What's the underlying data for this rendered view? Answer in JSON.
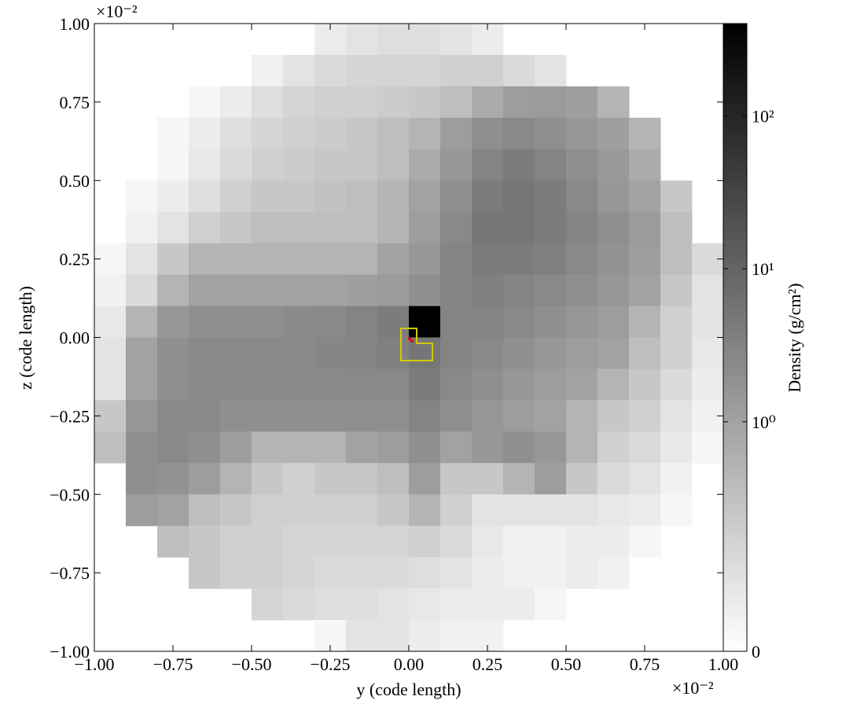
{
  "chart_data": {
    "type": "heatmap",
    "xlabel": "y  (code length)",
    "ylabel": "z  (code length)",
    "x_offset": "×10⁻²",
    "y_offset": "×10⁻²",
    "colorbar_label": "Density  (g/cm²)",
    "xlim": [
      -1,
      1
    ],
    "ylim": [
      -1,
      1
    ],
    "xticks": [
      {
        "value": -1,
        "label": "−1.00"
      },
      {
        "value": -0.75,
        "label": "−0.75"
      },
      {
        "value": -0.5,
        "label": "−0.50"
      },
      {
        "value": -0.25,
        "label": "−0.25"
      },
      {
        "value": 0,
        "label": "0.00"
      },
      {
        "value": 0.25,
        "label": "0.25"
      },
      {
        "value": 0.5,
        "label": "0.50"
      },
      {
        "value": 0.75,
        "label": "0.75"
      },
      {
        "value": 1,
        "label": "1.00"
      }
    ],
    "yticks": [
      {
        "value": -1,
        "label": "−1.00"
      },
      {
        "value": -0.75,
        "label": "−0.75"
      },
      {
        "value": -0.5,
        "label": "−0.50"
      },
      {
        "value": -0.25,
        "label": "−0.25"
      },
      {
        "value": 0,
        "label": "0.00"
      },
      {
        "value": 0.25,
        "label": "0.25"
      },
      {
        "value": 0.5,
        "label": "0.50"
      },
      {
        "value": 0.75,
        "label": "0.75"
      },
      {
        "value": 1,
        "label": "1.00"
      }
    ],
    "colorbar": {
      "scale": "symlog",
      "linthresh": 1,
      "lim": [
        0,
        400
      ],
      "colormap": "gray_r",
      "ticks": [
        {
          "value": 0,
          "label": "0"
        },
        {
          "value": 1,
          "label": "10⁰"
        },
        {
          "value": 10,
          "label": "10¹"
        },
        {
          "value": 100,
          "label": "10²"
        }
      ]
    },
    "x": [
      -0.95,
      -0.85,
      -0.75,
      -0.65,
      -0.55,
      -0.45,
      -0.35,
      -0.25,
      -0.15,
      -0.05,
      0.05,
      0.15,
      0.25,
      0.35,
      0.45,
      0.55,
      0.65,
      0.75,
      0.85,
      0.95
    ],
    "y": [
      0.95,
      0.85,
      0.75,
      0.65,
      0.55,
      0.45,
      0.35,
      0.25,
      0.15,
      0.05,
      -0.05,
      -0.15,
      -0.25,
      -0.35,
      -0.45,
      -0.55,
      -0.65,
      -0.75,
      -0.85,
      -0.95
    ],
    "values": [
      [
        null,
        null,
        null,
        null,
        null,
        null,
        null,
        0.2,
        0.3,
        0.35,
        0.35,
        0.3,
        0.2,
        null,
        null,
        null,
        null,
        null,
        null,
        null
      ],
      [
        null,
        null,
        null,
        null,
        null,
        0.15,
        0.3,
        0.4,
        0.45,
        0.45,
        0.45,
        0.5,
        0.5,
        0.4,
        0.3,
        null,
        null,
        null,
        null,
        null
      ],
      [
        null,
        null,
        null,
        0.1,
        0.2,
        0.35,
        0.45,
        0.5,
        0.5,
        0.55,
        0.6,
        0.7,
        0.9,
        1.2,
        1.3,
        1.1,
        0.8,
        null,
        null,
        null
      ],
      [
        null,
        null,
        0.1,
        0.2,
        0.35,
        0.45,
        0.5,
        0.55,
        0.6,
        0.7,
        0.8,
        1.2,
        2,
        2.5,
        2,
        1.5,
        1.1,
        0.8,
        null,
        null
      ],
      [
        null,
        null,
        0.1,
        0.25,
        0.4,
        0.5,
        0.55,
        0.6,
        0.6,
        0.7,
        0.9,
        1.5,
        3,
        4,
        3,
        2,
        1.4,
        0.9,
        null,
        null
      ],
      [
        null,
        0.1,
        0.2,
        0.35,
        0.5,
        0.6,
        0.6,
        0.65,
        0.7,
        0.8,
        1,
        2,
        4,
        5,
        4,
        2.5,
        1.5,
        1,
        0.6,
        null
      ],
      [
        null,
        0.15,
        0.3,
        0.5,
        0.6,
        0.7,
        0.7,
        0.7,
        0.7,
        0.8,
        1.2,
        2.5,
        5,
        5,
        4,
        3,
        2,
        1.3,
        0.7,
        null
      ],
      [
        0.1,
        0.3,
        0.6,
        0.8,
        0.8,
        0.8,
        0.8,
        0.8,
        0.8,
        1,
        1.5,
        3,
        4,
        4,
        3.5,
        2.5,
        1.8,
        1.2,
        0.7,
        0.4
      ],
      [
        0.15,
        0.4,
        0.8,
        1,
        1,
        1,
        1,
        1,
        1.1,
        1.3,
        2,
        3,
        3.5,
        3,
        2.5,
        2,
        1.5,
        1,
        0.6,
        0.3
      ],
      [
        0.25,
        0.8,
        1.5,
        2,
        2,
        2,
        2.3,
        2.5,
        3,
        4,
        400,
        3,
        3,
        2.5,
        2,
        1.5,
        1.2,
        0.8,
        0.5,
        0.3
      ],
      [
        0.3,
        1,
        2,
        2.5,
        2.5,
        2.5,
        2.5,
        2.8,
        3,
        3.5,
        5,
        3,
        2.5,
        2,
        1.5,
        1.2,
        1,
        0.7,
        0.5,
        0.25
      ],
      [
        0.3,
        1,
        2,
        2.5,
        2.5,
        2.5,
        2.5,
        2.5,
        2.5,
        2.5,
        4,
        2.5,
        2,
        1.5,
        1.2,
        1,
        0.8,
        0.6,
        0.4,
        0.2
      ],
      [
        0.6,
        1.5,
        2.5,
        2.5,
        2,
        2,
        2,
        2,
        2,
        2,
        3,
        2,
        1.5,
        1.2,
        1,
        0.8,
        0.6,
        0.5,
        0.3,
        0.15
      ],
      [
        0.7,
        2,
        2.5,
        2,
        1.2,
        0.8,
        0.8,
        0.8,
        1,
        1.2,
        2,
        1,
        1.5,
        2,
        1.5,
        0.8,
        0.5,
        0.4,
        0.25,
        0.1
      ],
      [
        null,
        2,
        1.8,
        1.2,
        0.8,
        0.6,
        0.5,
        0.6,
        0.6,
        0.7,
        1.2,
        0.6,
        0.6,
        0.8,
        1.2,
        0.6,
        0.4,
        0.3,
        0.15,
        null
      ],
      [
        null,
        1.2,
        1,
        0.7,
        0.6,
        0.5,
        0.5,
        0.5,
        0.5,
        0.6,
        0.8,
        0.5,
        0.3,
        0.3,
        0.3,
        0.3,
        0.25,
        0.2,
        0.1,
        null
      ],
      [
        null,
        null,
        0.7,
        0.6,
        0.5,
        0.5,
        0.45,
        0.45,
        0.45,
        0.45,
        0.5,
        0.4,
        0.25,
        0.15,
        0.15,
        0.2,
        0.2,
        0.1,
        null,
        null
      ],
      [
        null,
        null,
        null,
        0.6,
        0.5,
        0.5,
        0.45,
        0.4,
        0.4,
        0.4,
        0.35,
        0.3,
        0.2,
        0.15,
        0.15,
        0.2,
        0.15,
        null,
        null,
        null
      ],
      [
        null,
        null,
        null,
        null,
        null,
        0.45,
        0.4,
        0.35,
        0.35,
        0.3,
        0.25,
        0.2,
        0.2,
        0.2,
        0.1,
        null,
        null,
        null,
        null,
        null
      ],
      [
        null,
        null,
        null,
        null,
        null,
        null,
        null,
        0.1,
        0.3,
        0.3,
        0.2,
        0.15,
        0.15,
        null,
        null,
        null,
        null,
        null,
        null,
        null
      ]
    ]
  }
}
